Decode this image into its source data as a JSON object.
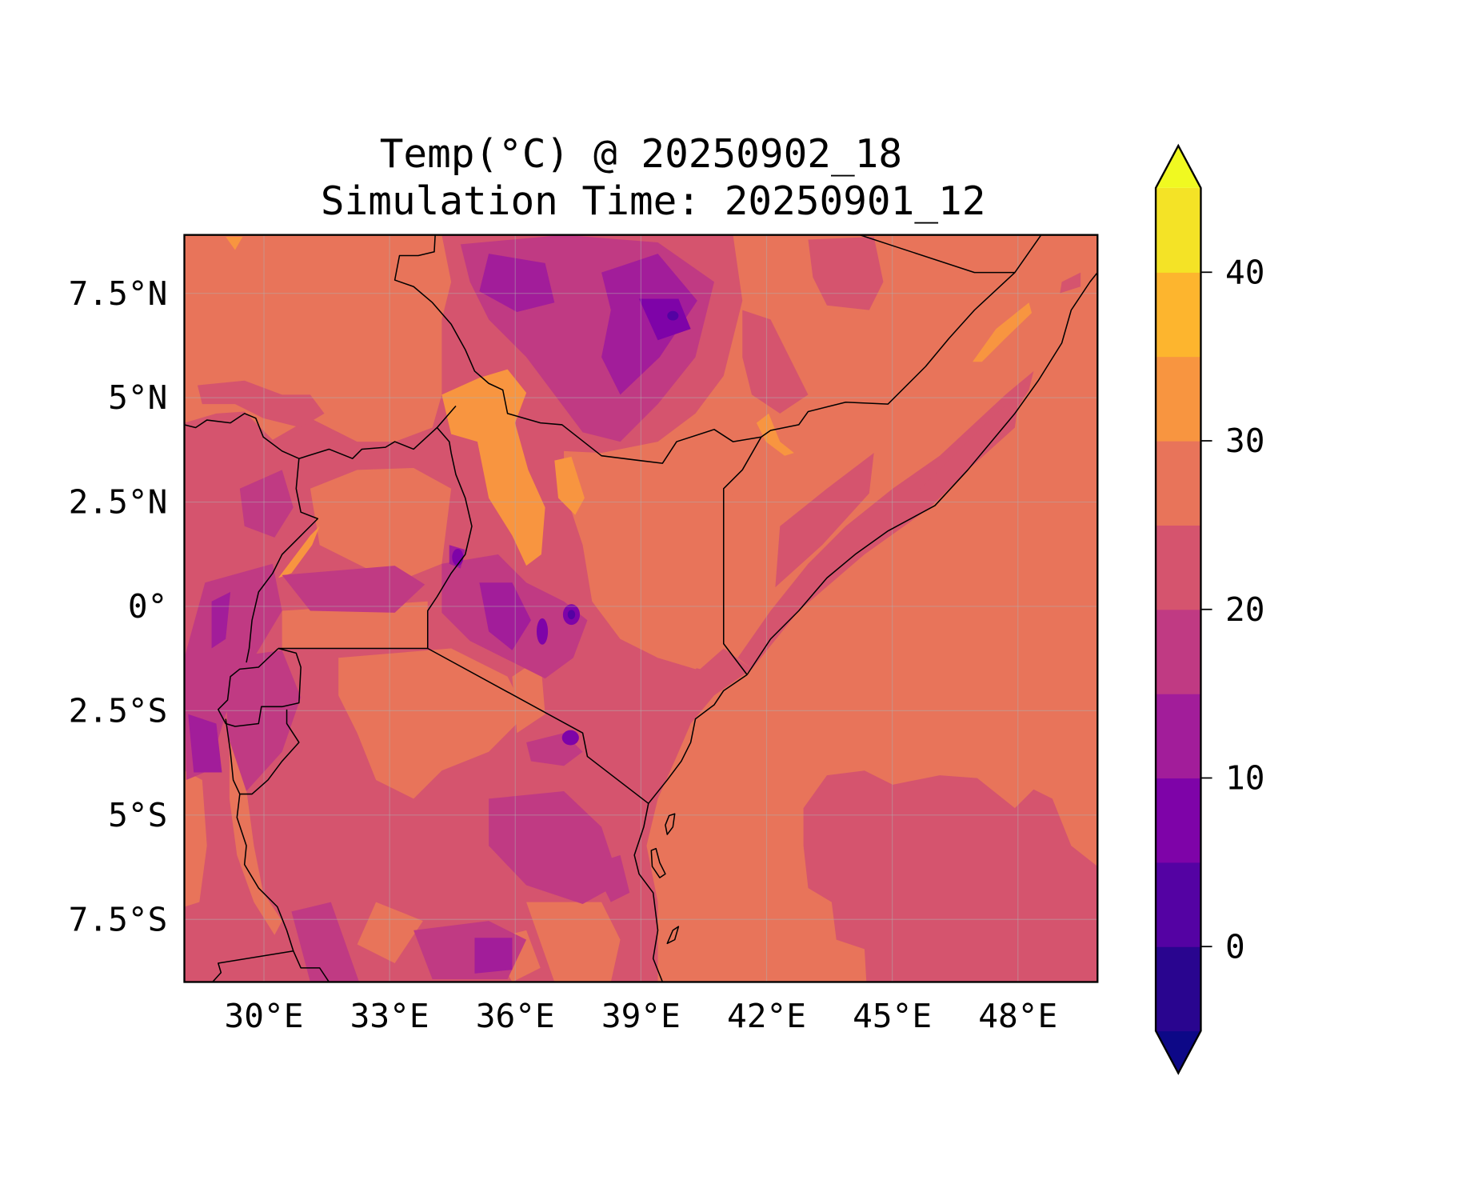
{
  "chart_data": {
    "type": "heatmap",
    "subtype": "filled-contour-map",
    "title": "Temp(°C) @ 20250902_18",
    "subtitle": "Simulation Time: 20250901_12",
    "xlabel": "",
    "ylabel": "",
    "xlim": [
      28.1,
      49.9
    ],
    "ylim": [
      -9.0,
      8.9
    ],
    "grid": true,
    "x_ticks": [
      {
        "value": 30,
        "label": "30°E"
      },
      {
        "value": 33,
        "label": "33°E"
      },
      {
        "value": 36,
        "label": "36°E"
      },
      {
        "value": 39,
        "label": "39°E"
      },
      {
        "value": 42,
        "label": "42°E"
      },
      {
        "value": 45,
        "label": "45°E"
      },
      {
        "value": 48,
        "label": "48°E"
      }
    ],
    "y_ticks": [
      {
        "value": 7.5,
        "label": "7.5°N"
      },
      {
        "value": 5,
        "label": "5°N"
      },
      {
        "value": 2.5,
        "label": "2.5°N"
      },
      {
        "value": 0,
        "label": "0°"
      },
      {
        "value": -2.5,
        "label": "2.5°S"
      },
      {
        "value": -5,
        "label": "5°S"
      },
      {
        "value": -7.5,
        "label": "7.5°S"
      }
    ],
    "colorbar": {
      "levels": [
        -5,
        0,
        5,
        10,
        15,
        20,
        25,
        30,
        35,
        40,
        45
      ],
      "colors": [
        "#29058f",
        "#5402a3",
        "#7e03a8",
        "#a21d9a",
        "#c03a83",
        "#d5546e",
        "#e8745a",
        "#f89540",
        "#fdb52e",
        "#f4e326"
      ],
      "extend_min_color": "#0d0887",
      "extend_max_color": "#f0f921",
      "ticks": [
        {
          "value": 0,
          "label": "0"
        },
        {
          "value": 10,
          "label": "10"
        },
        {
          "value": 20,
          "label": "20"
        },
        {
          "value": 30,
          "label": "30"
        },
        {
          "value": 40,
          "label": "40"
        }
      ],
      "position": "right"
    },
    "field_summary": {
      "dominant_range_land_east": [
        25,
        30
      ],
      "dominant_range_west_highlands": [
        15,
        25
      ],
      "min_band": [
        0,
        5
      ],
      "max_band": [
        30,
        35
      ]
    }
  }
}
